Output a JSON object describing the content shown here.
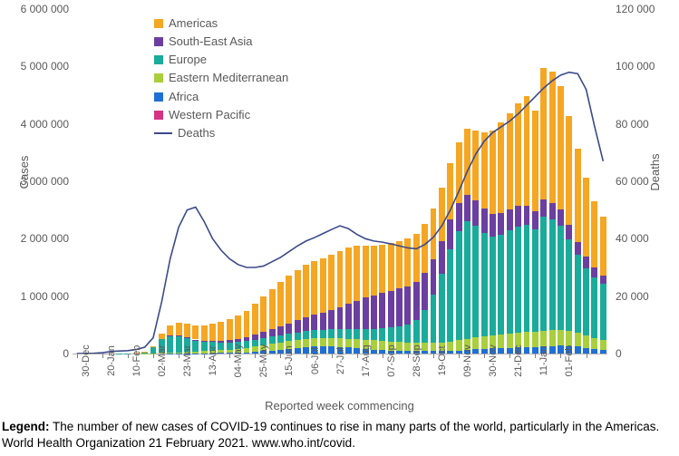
{
  "chart": {
    "type": "stacked-bar-with-line",
    "background_color": "#ffffff",
    "font_family": "Arial",
    "axis_color": "#595959",
    "y_left": {
      "label": "Cases",
      "min": 0,
      "max": 6000000,
      "step": 1000000,
      "ticks": [
        "0",
        "1 000 000",
        "2 000 000",
        "3 000 000",
        "4 000 000",
        "5 000 000",
        "6 000 000"
      ]
    },
    "y_right": {
      "label": "Deaths",
      "min": 0,
      "max": 120000,
      "step": 20000,
      "ticks": [
        "0",
        "20 000",
        "40 000",
        "60 000",
        "80 000",
        "100 000",
        "120 000"
      ]
    },
    "x": {
      "label": "Reported week commencing",
      "ticks_every": 3,
      "tick_labels": [
        "30-Dec",
        "20-Jan",
        "10-Feb",
        "02-Mar",
        "23-Mar",
        "13-Apr",
        "04-May",
        "25-May",
        "15-Jun",
        "06-Jul",
        "27-Jul",
        "17-Aug",
        "07-Sep",
        "28-Sep",
        "19-Oct",
        "09-Nov",
        "30-Nov",
        "21-Dec",
        "11-Jan",
        "01-Feb"
      ]
    },
    "series_order": [
      "western_pacific",
      "africa",
      "eastern_med",
      "europe",
      "south_east_asia",
      "americas"
    ],
    "colors": {
      "americas": "#f5a623",
      "south_east_asia": "#6b3fa0",
      "europe": "#1aab9b",
      "eastern_med": "#a9cf3c",
      "africa": "#1f6fd4",
      "western_pacific": "#d63384",
      "deaths_line": "#3b4a8a"
    },
    "bar_width_ratio": 0.74,
    "weeks": [
      {
        "wp": 5,
        "af": 0,
        "em": 0,
        "eu": 0,
        "sea": 0,
        "am": 0,
        "deaths": 10
      },
      {
        "wp": 20,
        "af": 0,
        "em": 0,
        "eu": 0,
        "sea": 0,
        "am": 0,
        "deaths": 50
      },
      {
        "wp": 30,
        "af": 0,
        "em": 0,
        "eu": 0,
        "sea": 0,
        "am": 0,
        "deaths": 120
      },
      {
        "wp": 35,
        "af": 0,
        "em": 0,
        "eu": 0,
        "sea": 0,
        "am": 0,
        "deaths": 300
      },
      {
        "wp": 35,
        "af": 0,
        "em": 0,
        "eu": 0,
        "sea": 0,
        "am": 0,
        "deaths": 700
      },
      {
        "wp": 30,
        "af": 0,
        "em": 0,
        "eu": 2000,
        "sea": 0,
        "am": 0,
        "deaths": 900
      },
      {
        "wp": 25,
        "af": 0,
        "em": 500,
        "eu": 5000,
        "sea": 0,
        "am": 1000,
        "deaths": 1000
      },
      {
        "wp": 22,
        "af": 0,
        "em": 1200,
        "eu": 12000,
        "sea": 0,
        "am": 2000,
        "deaths": 1400
      },
      {
        "wp": 20,
        "af": 0,
        "em": 2000,
        "eu": 30000,
        "sea": 0,
        "am": 5000,
        "deaths": 2200
      },
      {
        "wp": 15,
        "af": 500,
        "em": 4000,
        "eu": 100000,
        "sea": 500,
        "am": 20000,
        "deaths": 5500
      },
      {
        "wp": 10,
        "af": 1000,
        "em": 8000,
        "eu": 240000,
        "sea": 1000,
        "am": 90000,
        "deaths": 18000
      },
      {
        "wp": 8,
        "af": 2000,
        "em": 12000,
        "eu": 300000,
        "sea": 2000,
        "am": 180000,
        "deaths": 33000
      },
      {
        "wp": 8,
        "af": 3000,
        "em": 16000,
        "eu": 290000,
        "sea": 4000,
        "am": 230000,
        "deaths": 44000
      },
      {
        "wp": 8,
        "af": 4000,
        "em": 22000,
        "eu": 250000,
        "sea": 8000,
        "am": 245000,
        "deaths": 50000
      },
      {
        "wp": 8,
        "af": 5000,
        "em": 28000,
        "eu": 200000,
        "sea": 12000,
        "am": 250000,
        "deaths": 51000
      },
      {
        "wp": 8,
        "af": 6000,
        "em": 34000,
        "eu": 170000,
        "sea": 18000,
        "am": 260000,
        "deaths": 46000
      },
      {
        "wp": 8,
        "af": 8000,
        "em": 42000,
        "eu": 150000,
        "sea": 25000,
        "am": 290000,
        "deaths": 40000
      },
      {
        "wp": 8,
        "af": 10000,
        "em": 50000,
        "eu": 130000,
        "sea": 35000,
        "am": 320000,
        "deaths": 36000
      },
      {
        "wp": 8,
        "af": 12000,
        "em": 58000,
        "eu": 120000,
        "sea": 45000,
        "am": 360000,
        "deaths": 33000
      },
      {
        "wp": 8,
        "af": 15000,
        "em": 68000,
        "eu": 115000,
        "sea": 58000,
        "am": 400000,
        "deaths": 31000
      },
      {
        "wp": 8,
        "af": 21000,
        "em": 80000,
        "eu": 115000,
        "sea": 73000,
        "am": 460000,
        "deaths": 30000
      },
      {
        "wp": 8,
        "af": 29000,
        "em": 94000,
        "eu": 120000,
        "sea": 90000,
        "am": 530000,
        "deaths": 30000
      },
      {
        "wp": 8,
        "af": 40000,
        "em": 105000,
        "eu": 125000,
        "sea": 110000,
        "am": 610000,
        "deaths": 30500
      },
      {
        "wp": 8,
        "af": 55000,
        "em": 115000,
        "eu": 128000,
        "sea": 130000,
        "am": 690000,
        "deaths": 32000
      },
      {
        "wp": 8,
        "af": 70000,
        "em": 122000,
        "eu": 130000,
        "sea": 155000,
        "am": 770000,
        "deaths": 33500
      },
      {
        "wp": 8,
        "af": 85000,
        "em": 130000,
        "eu": 132000,
        "sea": 180000,
        "am": 830000,
        "deaths": 35500
      },
      {
        "wp": 9,
        "af": 100000,
        "em": 135000,
        "eu": 135000,
        "sea": 210000,
        "am": 880000,
        "deaths": 37500
      },
      {
        "wp": 9,
        "af": 115000,
        "em": 138000,
        "eu": 138000,
        "sea": 240000,
        "am": 915000,
        "deaths": 39200
      },
      {
        "wp": 9,
        "af": 127000,
        "em": 140000,
        "eu": 140000,
        "sea": 270000,
        "am": 930000,
        "deaths": 40400
      },
      {
        "wp": 9,
        "af": 132000,
        "em": 142000,
        "eu": 142000,
        "sea": 300000,
        "am": 945000,
        "deaths": 41800
      },
      {
        "wp": 10,
        "af": 128000,
        "em": 145000,
        "eu": 148000,
        "sea": 340000,
        "am": 960000,
        "deaths": 43200
      },
      {
        "wp": 10,
        "af": 118000,
        "em": 150000,
        "eu": 155000,
        "sea": 390000,
        "am": 975000,
        "deaths": 44500
      },
      {
        "wp": 11,
        "af": 105000,
        "em": 155000,
        "eu": 165000,
        "sea": 440000,
        "am": 985000,
        "deaths": 43500
      },
      {
        "wp": 12,
        "af": 92000,
        "em": 160000,
        "eu": 175000,
        "sea": 495000,
        "am": 960000,
        "deaths": 41500
      },
      {
        "wp": 13,
        "af": 80000,
        "em": 162000,
        "eu": 185000,
        "sea": 545000,
        "am": 900000,
        "deaths": 40000
      },
      {
        "wp": 14,
        "af": 70000,
        "em": 160000,
        "eu": 200000,
        "sea": 585000,
        "am": 860000,
        "deaths": 39200
      },
      {
        "wp": 15,
        "af": 62000,
        "em": 155000,
        "eu": 220000,
        "sea": 615000,
        "am": 840000,
        "deaths": 38800
      },
      {
        "wp": 16,
        "af": 55000,
        "em": 152000,
        "eu": 245000,
        "sea": 640000,
        "am": 830000,
        "deaths": 38200
      },
      {
        "wp": 17,
        "af": 50000,
        "em": 150000,
        "eu": 270000,
        "sea": 660000,
        "am": 825000,
        "deaths": 37500
      },
      {
        "wp": 18,
        "af": 46000,
        "em": 148000,
        "eu": 310000,
        "sea": 670000,
        "am": 828000,
        "deaths": 36800
      },
      {
        "wp": 19,
        "af": 43000,
        "em": 146000,
        "eu": 400000,
        "sea": 660000,
        "am": 838000,
        "deaths": 36500
      },
      {
        "wp": 20,
        "af": 41000,
        "em": 145000,
        "eu": 580000,
        "sea": 640000,
        "am": 855000,
        "deaths": 38000
      },
      {
        "wp": 22,
        "af": 40000,
        "em": 148000,
        "eu": 840000,
        "sea": 610000,
        "am": 885000,
        "deaths": 40500
      },
      {
        "wp": 24,
        "af": 42000,
        "em": 154000,
        "eu": 1200000,
        "sea": 570000,
        "am": 920000,
        "deaths": 44500
      },
      {
        "wp": 26,
        "af": 46000,
        "em": 164000,
        "eu": 1600000,
        "sea": 530000,
        "am": 975000,
        "deaths": 50000
      },
      {
        "wp": 28,
        "af": 54000,
        "em": 178000,
        "eu": 1900000,
        "sea": 495000,
        "am": 1055000,
        "deaths": 56500
      },
      {
        "wp": 30,
        "af": 64000,
        "em": 192000,
        "eu": 2050000,
        "sea": 465000,
        "am": 1140000,
        "deaths": 63500
      },
      {
        "wp": 32,
        "af": 76000,
        "em": 206000,
        "eu": 1950000,
        "sea": 440000,
        "am": 1220000,
        "deaths": 69500
      },
      {
        "wp": 34,
        "af": 86000,
        "em": 218000,
        "eu": 1800000,
        "sea": 415000,
        "am": 1330000,
        "deaths": 74000
      },
      {
        "wp": 36,
        "af": 92000,
        "em": 228000,
        "eu": 1720000,
        "sea": 395000,
        "am": 1450000,
        "deaths": 77000
      },
      {
        "wp": 38,
        "af": 96000,
        "em": 236000,
        "eu": 1730000,
        "sea": 380000,
        "am": 1580000,
        "deaths": 79000
      },
      {
        "wp": 40,
        "af": 100000,
        "em": 244000,
        "eu": 1800000,
        "sea": 365000,
        "am": 1680000,
        "deaths": 81000
      },
      {
        "wp": 43,
        "af": 105000,
        "em": 252000,
        "eu": 1860000,
        "sea": 350000,
        "am": 1790000,
        "deaths": 83500
      },
      {
        "wp": 46,
        "af": 112000,
        "em": 260000,
        "eu": 1870000,
        "sea": 335000,
        "am": 1900000,
        "deaths": 86500
      },
      {
        "wp": 49,
        "af": 118000,
        "em": 268000,
        "eu": 1780000,
        "sea": 315000,
        "am": 1750000,
        "deaths": 89500
      },
      {
        "wp": 52,
        "af": 126000,
        "em": 275000,
        "eu": 1980000,
        "sea": 300000,
        "am": 2300000,
        "deaths": 92500
      },
      {
        "wp": 55,
        "af": 134000,
        "em": 280000,
        "eu": 1920000,
        "sea": 290000,
        "am": 2290000,
        "deaths": 95000
      },
      {
        "wp": 57,
        "af": 138000,
        "em": 280000,
        "eu": 1810000,
        "sea": 275000,
        "am": 2150000,
        "deaths": 97000
      },
      {
        "wp": 56,
        "af": 134000,
        "em": 265000,
        "eu": 1590000,
        "sea": 255000,
        "am": 1900000,
        "deaths": 98000
      },
      {
        "wp": 52,
        "af": 120000,
        "em": 240000,
        "eu": 1360000,
        "sea": 225000,
        "am": 1620000,
        "deaths": 97500
      },
      {
        "wp": 46,
        "af": 100000,
        "em": 210000,
        "eu": 1180000,
        "sea": 195000,
        "am": 1380000,
        "deaths": 92000
      },
      {
        "wp": 40,
        "af": 80000,
        "em": 185000,
        "eu": 1060000,
        "sea": 168000,
        "am": 1160000,
        "deaths": 79000
      },
      {
        "wp": 35,
        "af": 65000,
        "em": 168000,
        "eu": 980000,
        "sea": 150000,
        "am": 1020000,
        "deaths": 67000
      }
    ],
    "legend": [
      {
        "key": "americas",
        "label": "Americas"
      },
      {
        "key": "south_east_asia",
        "label": "South-East Asia"
      },
      {
        "key": "europe",
        "label": "Europe"
      },
      {
        "key": "eastern_med",
        "label": "Eastern Mediterranean"
      },
      {
        "key": "africa",
        "label": "Africa"
      },
      {
        "key": "western_pacific",
        "label": "Western Pacific"
      },
      {
        "key": "deaths_line",
        "label": "Deaths",
        "line": true
      }
    ]
  },
  "caption": {
    "lead": "Legend:",
    "text": " The number of new cases of COVID-19 continues to rise in many parts of the world, particularly in the Americas. World Health Organization 21 February 2021. www.who.int/covid."
  }
}
